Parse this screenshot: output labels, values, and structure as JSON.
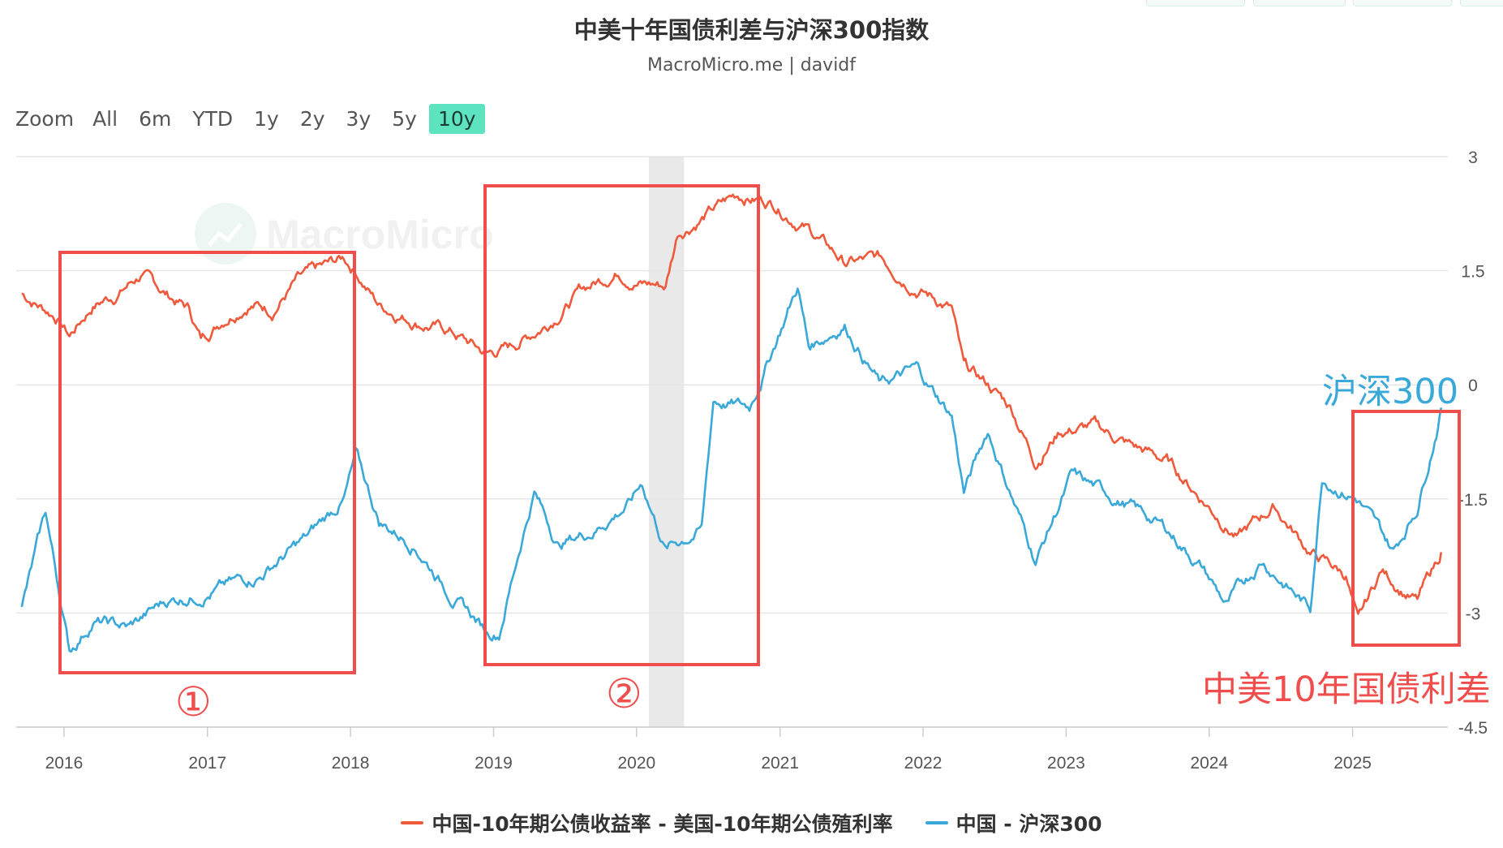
{
  "header": {
    "title": "中美十年国债利差与沪深300指数",
    "subtitle": "MacroMicro.me | davidf"
  },
  "zoom": {
    "label": "Zoom",
    "buttons": [
      "All",
      "6m",
      "YTD",
      "1y",
      "2y",
      "3y",
      "5y",
      "10y"
    ],
    "active": "10y"
  },
  "watermark": "MacroMicro",
  "annotations": {
    "csi300_label": "沪深300",
    "spread_label": "中美10年国债利差",
    "box1": "①",
    "box2": "②"
  },
  "colors": {
    "spread": "#ef5a3c",
    "csi300": "#3aa9d9",
    "annotation_box": "#f04d4d",
    "shade": "#e9e9e9"
  },
  "chart_data": {
    "type": "line",
    "x_axis": {
      "ticks": [
        "2016",
        "2017",
        "2018",
        "2019",
        "2020",
        "2021",
        "2022",
        "2023",
        "2024",
        "2025"
      ],
      "range": [
        "2015-09-01",
        "2025-09-01"
      ]
    },
    "y_axis": {
      "ticks": [
        "3",
        "1.5",
        "0",
        "-1.5",
        "-3",
        "-4.5"
      ],
      "range": [
        -4.5,
        3
      ]
    },
    "series": [
      {
        "name": "中国-10年期公债收益率 - 美国-10年期公债殖利率",
        "points": [
          [
            "2015-09",
            1.2
          ],
          [
            "2015-12",
            0.9
          ],
          [
            "2016-01",
            0.65
          ],
          [
            "2016-03",
            1.05
          ],
          [
            "2016-05",
            1.2
          ],
          [
            "2016-07",
            1.45
          ],
          [
            "2016-09",
            1.2
          ],
          [
            "2016-11",
            1.0
          ],
          [
            "2016-12",
            0.6
          ],
          [
            "2017-02",
            0.9
          ],
          [
            "2017-04",
            1.1
          ],
          [
            "2017-06",
            1.0
          ],
          [
            "2017-08",
            1.35
          ],
          [
            "2017-10",
            1.5
          ],
          [
            "2017-12",
            1.65
          ],
          [
            "2018-01",
            1.5
          ],
          [
            "2018-03",
            1.05
          ],
          [
            "2018-06",
            0.85
          ],
          [
            "2018-09",
            0.7
          ],
          [
            "2018-12",
            0.4
          ],
          [
            "2019-02",
            0.5
          ],
          [
            "2019-05",
            0.8
          ],
          [
            "2019-08",
            1.25
          ],
          [
            "2019-11",
            1.5
          ],
          [
            "2020-01",
            1.35
          ],
          [
            "2020-03",
            1.3
          ],
          [
            "2020-04",
            2.0
          ],
          [
            "2020-07",
            2.3
          ],
          [
            "2020-09",
            2.5
          ],
          [
            "2020-12",
            2.4
          ],
          [
            "2021-03",
            2.05
          ],
          [
            "2021-06",
            1.6
          ],
          [
            "2021-09",
            1.65
          ],
          [
            "2021-12",
            1.3
          ],
          [
            "2022-03",
            1.0
          ],
          [
            "2022-04",
            0.2
          ],
          [
            "2022-06",
            0.0
          ],
          [
            "2022-08",
            -0.3
          ],
          [
            "2022-10",
            -1.0
          ],
          [
            "2022-12",
            -0.6
          ],
          [
            "2023-03",
            -0.55
          ],
          [
            "2023-06",
            -0.8
          ],
          [
            "2023-09",
            -1.0
          ],
          [
            "2023-12",
            -1.5
          ],
          [
            "2024-03",
            -2.0
          ],
          [
            "2024-06",
            -1.6
          ],
          [
            "2024-09",
            -2.2
          ],
          [
            "2024-12",
            -2.5
          ],
          [
            "2025-01",
            -3.15
          ],
          [
            "2025-03",
            -2.45
          ],
          [
            "2025-06",
            -2.85
          ],
          [
            "2025-08",
            -2.2
          ]
        ]
      },
      {
        "name": "中国 - 沪深300",
        "points": [
          [
            "2015-09",
            -2.95
          ],
          [
            "2015-11",
            -1.7
          ],
          [
            "2016-01",
            -3.5
          ],
          [
            "2016-03",
            -3.1
          ],
          [
            "2016-06",
            -3.2
          ],
          [
            "2016-09",
            -2.85
          ],
          [
            "2017-01",
            -2.7
          ],
          [
            "2017-05",
            -2.5
          ],
          [
            "2017-09",
            -2.0
          ],
          [
            "2017-12",
            -1.5
          ],
          [
            "2018-01",
            -0.95
          ],
          [
            "2018-03",
            -1.8
          ],
          [
            "2018-06",
            -2.1
          ],
          [
            "2018-09",
            -2.75
          ],
          [
            "2018-12",
            -3.25
          ],
          [
            "2019-01",
            -3.25
          ],
          [
            "2019-03",
            -2.0
          ],
          [
            "2019-04",
            -1.4
          ],
          [
            "2019-06",
            -2.1
          ],
          [
            "2019-09",
            -1.9
          ],
          [
            "2019-12",
            -1.55
          ],
          [
            "2020-01",
            -1.3
          ],
          [
            "2020-03",
            -2.15
          ],
          [
            "2020-06",
            -1.9
          ],
          [
            "2020-07",
            -0.2
          ],
          [
            "2020-10",
            -0.3
          ],
          [
            "2020-12",
            0.5
          ],
          [
            "2021-02",
            1.3
          ],
          [
            "2021-03",
            0.5
          ],
          [
            "2021-06",
            0.8
          ],
          [
            "2021-09",
            0.0
          ],
          [
            "2021-12",
            0.2
          ],
          [
            "2022-03",
            -0.4
          ],
          [
            "2022-04",
            -1.4
          ],
          [
            "2022-06",
            -0.6
          ],
          [
            "2022-10",
            -2.3
          ],
          [
            "2023-01",
            -1.2
          ],
          [
            "2023-06",
            -1.6
          ],
          [
            "2023-09",
            -1.9
          ],
          [
            "2023-12",
            -2.4
          ],
          [
            "2024-02",
            -2.9
          ],
          [
            "2024-05",
            -2.3
          ],
          [
            "2024-09",
            -2.95
          ],
          [
            "2024-10",
            -1.2
          ],
          [
            "2025-01",
            -1.5
          ],
          [
            "2025-04",
            -2.2
          ],
          [
            "2025-06",
            -1.6
          ],
          [
            "2025-08",
            -0.3
          ]
        ]
      }
    ],
    "shaded_band": [
      "2020-02",
      "2020-05"
    ],
    "legend_position": "bottom",
    "grid": true
  },
  "legend": [
    {
      "label": "中国-10年期公债收益率 - 美国-10年期公债殖利率",
      "series": 0
    },
    {
      "label": "中国 - 沪深300",
      "series": 1
    }
  ]
}
